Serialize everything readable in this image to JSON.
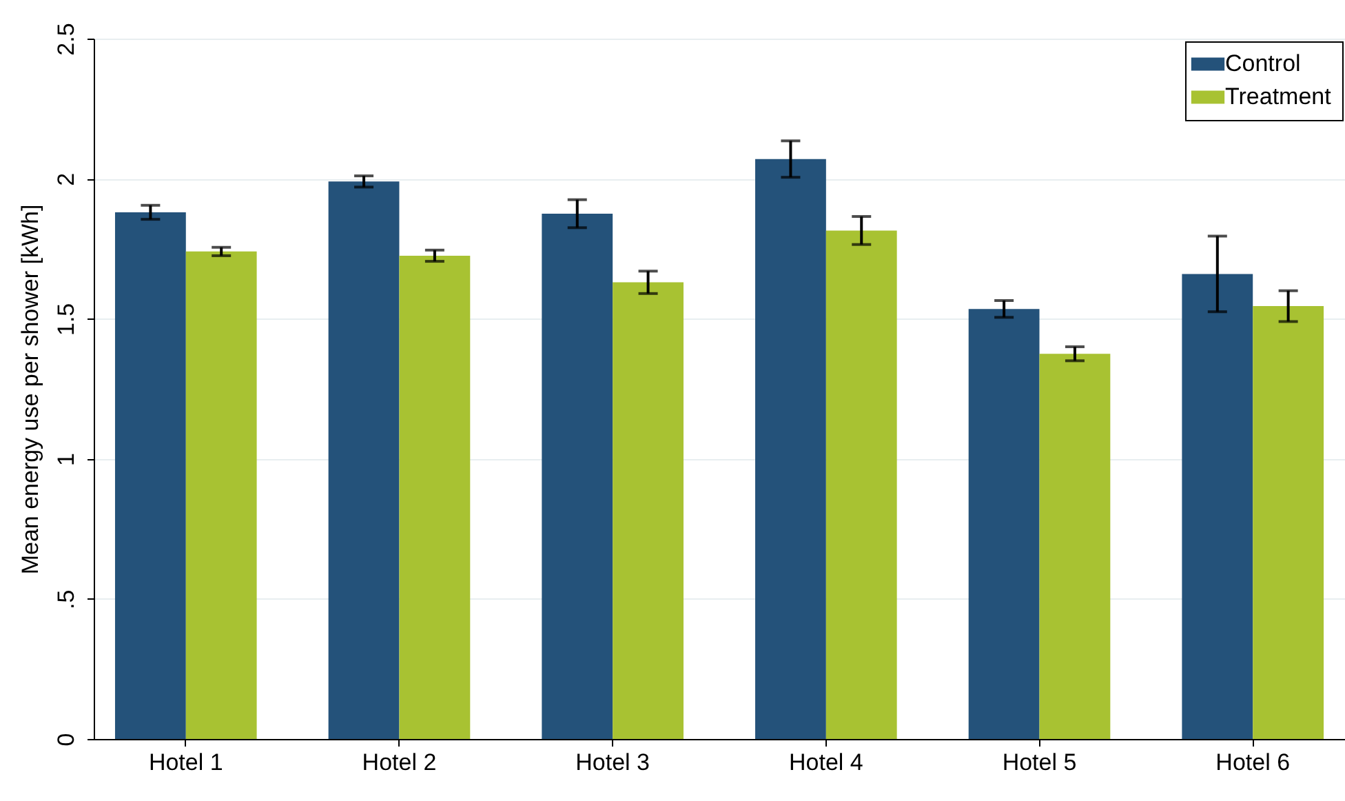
{
  "chart_data": {
    "type": "bar",
    "ylabel": "Mean energy use per shower [kWh]",
    "categories": [
      "Hotel 1",
      "Hotel 2",
      "Hotel 3",
      "Hotel 4",
      "Hotel 5",
      "Hotel 6"
    ],
    "series": [
      {
        "name": "Control",
        "color": "#24527a",
        "values": [
          1.88,
          1.99,
          1.875,
          2.07,
          1.535,
          1.66
        ],
        "errors": [
          0.025,
          0.02,
          0.05,
          0.065,
          0.03,
          0.135
        ]
      },
      {
        "name": "Treatment",
        "color": "#a8c232",
        "values": [
          1.74,
          1.725,
          1.63,
          1.815,
          1.375,
          1.545
        ],
        "errors": [
          0.015,
          0.02,
          0.04,
          0.05,
          0.025,
          0.055
        ]
      }
    ],
    "ylim": [
      0,
      2.5
    ],
    "yticks": [
      0,
      {
        "value": 0.5,
        "label": ".5"
      },
      1,
      1.5,
      2,
      2.5
    ],
    "grid": "y",
    "legend": "top right"
  }
}
